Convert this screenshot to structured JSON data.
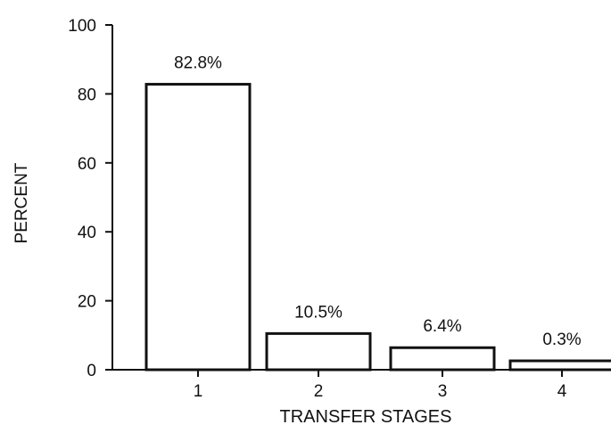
{
  "chart_data": {
    "type": "bar",
    "title": "",
    "xlabel": "TRANSFER STAGES",
    "ylabel": "PERCENT",
    "categories": [
      "1",
      "2",
      "3",
      "4"
    ],
    "values": [
      82.8,
      10.5,
      6.4,
      0.3
    ],
    "data_labels": [
      "82.8%",
      "10.5%",
      "6.4%",
      "0.3%"
    ],
    "ylim": [
      0,
      100
    ],
    "yticks": [
      0,
      20,
      40,
      60,
      80,
      100
    ],
    "grid": false,
    "legend": "none",
    "colors": {
      "bar_fill": "#ffffff",
      "bar_stroke": "#111111",
      "axis": "#111111"
    }
  }
}
